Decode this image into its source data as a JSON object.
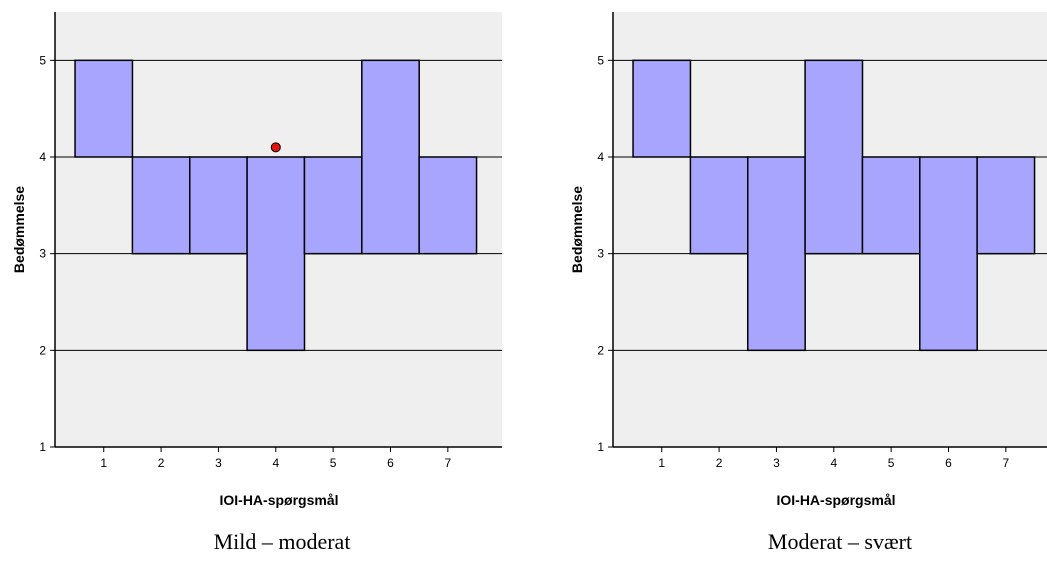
{
  "chart_data": [
    {
      "type": "boxplot",
      "title": "",
      "caption": "Mild – moderat",
      "xlabel": "IOI-HA-spørgsmål",
      "ylabel": "Bedømmelse",
      "x_ticks": [
        "1",
        "2",
        "3",
        "4",
        "5",
        "6",
        "7"
      ],
      "y_ticks": [
        "1",
        "2",
        "3",
        "4",
        "5"
      ],
      "ylim": [
        1,
        5.5
      ],
      "grid": true,
      "boxes": [
        {
          "x": 1,
          "q1": 4,
          "q3": 5
        },
        {
          "x": 2,
          "q1": 3,
          "q3": 4
        },
        {
          "x": 3,
          "q1": 3,
          "q3": 4
        },
        {
          "x": 4,
          "q1": 2,
          "q3": 4
        },
        {
          "x": 5,
          "q1": 3,
          "q3": 4
        },
        {
          "x": 6,
          "q1": 3,
          "q3": 5
        },
        {
          "x": 7,
          "q1": 3,
          "q3": 4
        }
      ],
      "outliers": [
        {
          "x": 4,
          "y": 4.1
        }
      ]
    },
    {
      "type": "boxplot",
      "title": "",
      "caption": "Moderat – svært",
      "xlabel": "IOI-HA-spørgsmål",
      "ylabel": "Bedømmelse",
      "x_ticks": [
        "1",
        "2",
        "3",
        "4",
        "5",
        "6",
        "7"
      ],
      "y_ticks": [
        "1",
        "2",
        "3",
        "4",
        "5"
      ],
      "ylim": [
        1,
        5.5
      ],
      "grid": true,
      "boxes": [
        {
          "x": 1,
          "q1": 4,
          "q3": 5
        },
        {
          "x": 2,
          "q1": 3,
          "q3": 4
        },
        {
          "x": 3,
          "q1": 2,
          "q3": 4
        },
        {
          "x": 4,
          "q1": 3,
          "q3": 5
        },
        {
          "x": 5,
          "q1": 3,
          "q3": 4
        },
        {
          "x": 6,
          "q1": 2,
          "q3": 4
        },
        {
          "x": 7,
          "q1": 3,
          "q3": 4
        }
      ],
      "outliers": []
    }
  ],
  "colors": {
    "plot_background": "#efefef",
    "box_fill": "#a8a5fe",
    "box_stroke": "#000000",
    "gridline": "#000000",
    "outlier_fill": "#e8130c"
  }
}
